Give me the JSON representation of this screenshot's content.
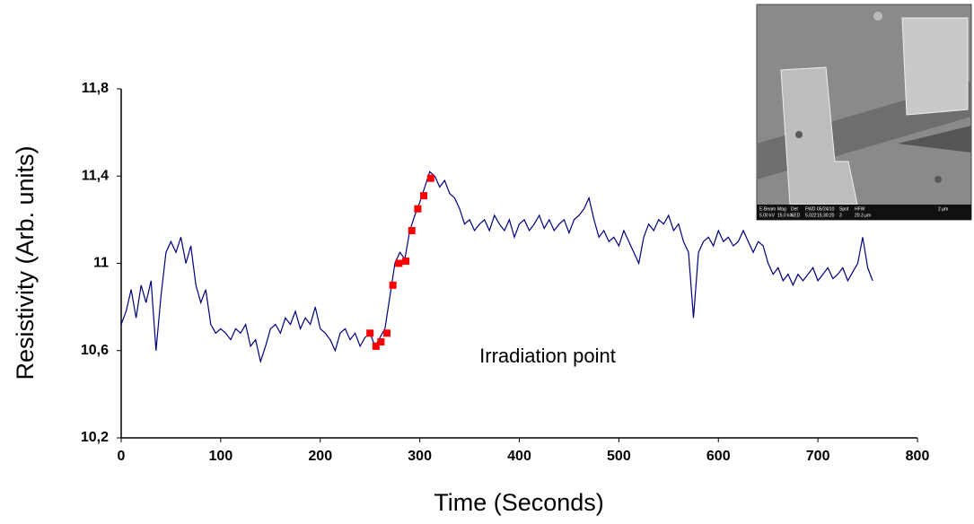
{
  "chart_data": {
    "type": "line",
    "x_label": "Time (Seconds)",
    "y_label": "Resistivity (Arb. units)",
    "annotation": "Irradiation point",
    "color": "#000080",
    "x": [
      0,
      5,
      10,
      15,
      20,
      25,
      30,
      35,
      40,
      45,
      50,
      55,
      60,
      65,
      70,
      75,
      80,
      85,
      90,
      95,
      100,
      105,
      110,
      115,
      120,
      125,
      130,
      135,
      140,
      145,
      150,
      155,
      160,
      165,
      170,
      175,
      180,
      185,
      190,
      195,
      200,
      205,
      210,
      215,
      220,
      225,
      230,
      235,
      240,
      245,
      250,
      255,
      260,
      265,
      270,
      275,
      280,
      285,
      290,
      295,
      300,
      305,
      310,
      315,
      320,
      325,
      330,
      335,
      340,
      345,
      350,
      355,
      360,
      365,
      370,
      375,
      380,
      385,
      390,
      395,
      400,
      405,
      410,
      415,
      420,
      425,
      430,
      435,
      440,
      445,
      450,
      455,
      460,
      465,
      470,
      475,
      480,
      485,
      490,
      495,
      500,
      505,
      510,
      515,
      520,
      525,
      530,
      535,
      540,
      545,
      550,
      555,
      560,
      565,
      570,
      575,
      580,
      585,
      590,
      595,
      600,
      605,
      610,
      615,
      620,
      625,
      630,
      635,
      640,
      645,
      650,
      655,
      660,
      665,
      670,
      675,
      680,
      685,
      690,
      695,
      700,
      705,
      710,
      715,
      720,
      725,
      730,
      735,
      740,
      745,
      750,
      755
    ],
    "values": [
      10.72,
      10.78,
      10.88,
      10.75,
      10.9,
      10.82,
      10.92,
      10.6,
      10.85,
      11.05,
      11.1,
      11.05,
      11.12,
      11.0,
      11.08,
      10.9,
      10.82,
      10.88,
      10.72,
      10.68,
      10.7,
      10.68,
      10.65,
      10.7,
      10.68,
      10.72,
      10.62,
      10.65,
      10.55,
      10.62,
      10.7,
      10.72,
      10.68,
      10.75,
      10.72,
      10.78,
      10.7,
      10.75,
      10.72,
      10.8,
      10.7,
      10.68,
      10.65,
      10.6,
      10.68,
      10.7,
      10.65,
      10.68,
      10.62,
      10.66,
      10.68,
      10.62,
      10.66,
      10.7,
      10.85,
      11.0,
      11.05,
      11.02,
      11.15,
      11.22,
      11.28,
      11.35,
      11.42,
      11.4,
      11.35,
      11.38,
      11.32,
      11.3,
      11.25,
      11.18,
      11.2,
      11.15,
      11.18,
      11.2,
      11.15,
      11.22,
      11.18,
      11.15,
      11.2,
      11.12,
      11.18,
      11.2,
      11.15,
      11.18,
      11.22,
      11.16,
      11.2,
      11.15,
      11.18,
      11.2,
      11.14,
      11.2,
      11.22,
      11.25,
      11.3,
      11.2,
      11.12,
      11.15,
      11.1,
      11.12,
      11.08,
      11.15,
      11.1,
      11.05,
      11.0,
      11.12,
      11.18,
      11.15,
      11.2,
      11.18,
      11.22,
      11.15,
      11.18,
      11.1,
      11.05,
      10.75,
      11.05,
      11.1,
      11.12,
      11.08,
      11.15,
      11.1,
      11.12,
      11.08,
      11.1,
      11.15,
      11.1,
      11.05,
      11.1,
      11.08,
      11.0,
      10.95,
      10.98,
      10.92,
      10.95,
      10.9,
      10.95,
      10.92,
      10.95,
      10.98,
      10.92,
      10.95,
      10.98,
      10.93,
      10.95,
      10.98,
      10.92,
      10.96,
      11.0,
      11.12,
      10.98,
      10.92
    ],
    "highlight": {
      "color": "#ff0000",
      "x": [
        250,
        256,
        261,
        267,
        273,
        279,
        286,
        292,
        298,
        304,
        311
      ],
      "values": [
        10.68,
        10.62,
        10.64,
        10.68,
        10.9,
        11.0,
        11.01,
        11.15,
        11.25,
        11.31,
        11.39
      ]
    },
    "xlim": [
      0,
      800
    ],
    "xticks": [
      0,
      100,
      200,
      300,
      400,
      500,
      600,
      700,
      800
    ],
    "ylim": [
      10.2,
      11.8
    ],
    "yticks": [
      {
        "value": 10.2,
        "label": "10,2"
      },
      {
        "value": 10.6,
        "label": "10,6"
      },
      {
        "value": 11,
        "label": "11"
      },
      {
        "value": 11.4,
        "label": "11,4"
      },
      {
        "value": 11.8,
        "label": "11,8"
      }
    ]
  },
  "inset": {
    "header": [
      "E-Beam",
      "Mag",
      "Det",
      "FWD",
      "05/24/10",
      "Spot",
      "HFW",
      "2 µm"
    ],
    "values": [
      "5.00 kV",
      "15.0 kX",
      "SED",
      "5.022",
      "15:30:20",
      "3",
      "20.3 µm"
    ]
  }
}
